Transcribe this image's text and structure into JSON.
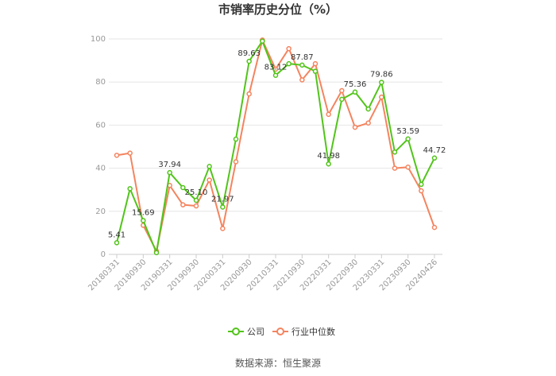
{
  "chart_data": {
    "type": "line",
    "title": "市销率历史分位（%）",
    "source": "数据来源：恒生聚源",
    "ylim": [
      0,
      100
    ],
    "yticks": [
      0,
      20,
      40,
      60,
      80,
      100
    ],
    "grid": true,
    "legend_position": "bottom",
    "x": [
      "20180331",
      "20180630",
      "20180930",
      "20181231",
      "20190331",
      "20190630",
      "20190930",
      "20191231",
      "20200331",
      "20200630",
      "20200930",
      "20201231",
      "20210331",
      "20210630",
      "20210930",
      "20211231",
      "20220331",
      "20220630",
      "20220930",
      "20221231",
      "20230331",
      "20230630",
      "20230930",
      "20231231",
      "20240426"
    ],
    "x_tick_labels": [
      "20180331",
      "20180930",
      "20190331",
      "20190930",
      "20200331",
      "20200930",
      "20210331",
      "20210930",
      "20220331",
      "20220930",
      "20230331",
      "20230930",
      "20240426"
    ],
    "series": [
      {
        "name": "公司",
        "color": "#52c41a",
        "values": [
          5.41,
          30.5,
          15.69,
          0.8,
          37.94,
          31.0,
          25.1,
          40.8,
          21.97,
          53.5,
          89.63,
          99.0,
          83.12,
          88.5,
          87.87,
          85.0,
          41.98,
          72.0,
          75.36,
          67.5,
          79.86,
          47.5,
          53.59,
          32.5,
          44.72
        ]
      },
      {
        "name": "行业中位数",
        "color": "#f4845f",
        "values": [
          46.0,
          47.0,
          13.5,
          1.5,
          32.0,
          23.0,
          22.5,
          34.5,
          12.0,
          43.0,
          74.5,
          99.5,
          86.0,
          95.5,
          81.0,
          88.5,
          65.0,
          76.0,
          59.0,
          61.0,
          73.0,
          40.0,
          40.5,
          29.5,
          12.5
        ]
      }
    ],
    "data_labels": [
      {
        "index": 0,
        "text": "5.41"
      },
      {
        "index": 2,
        "text": "15.69"
      },
      {
        "index": 4,
        "text": "37.94"
      },
      {
        "index": 6,
        "text": "25.10"
      },
      {
        "index": 8,
        "text": "21.97"
      },
      {
        "index": 10,
        "text": "89.63"
      },
      {
        "index": 12,
        "text": "83.12"
      },
      {
        "index": 14,
        "text": "87.87"
      },
      {
        "index": 16,
        "text": "41.98"
      },
      {
        "index": 18,
        "text": "75.36"
      },
      {
        "index": 20,
        "text": "79.86"
      },
      {
        "index": 22,
        "text": "53.59"
      },
      {
        "index": 24,
        "text": "44.72"
      }
    ]
  }
}
